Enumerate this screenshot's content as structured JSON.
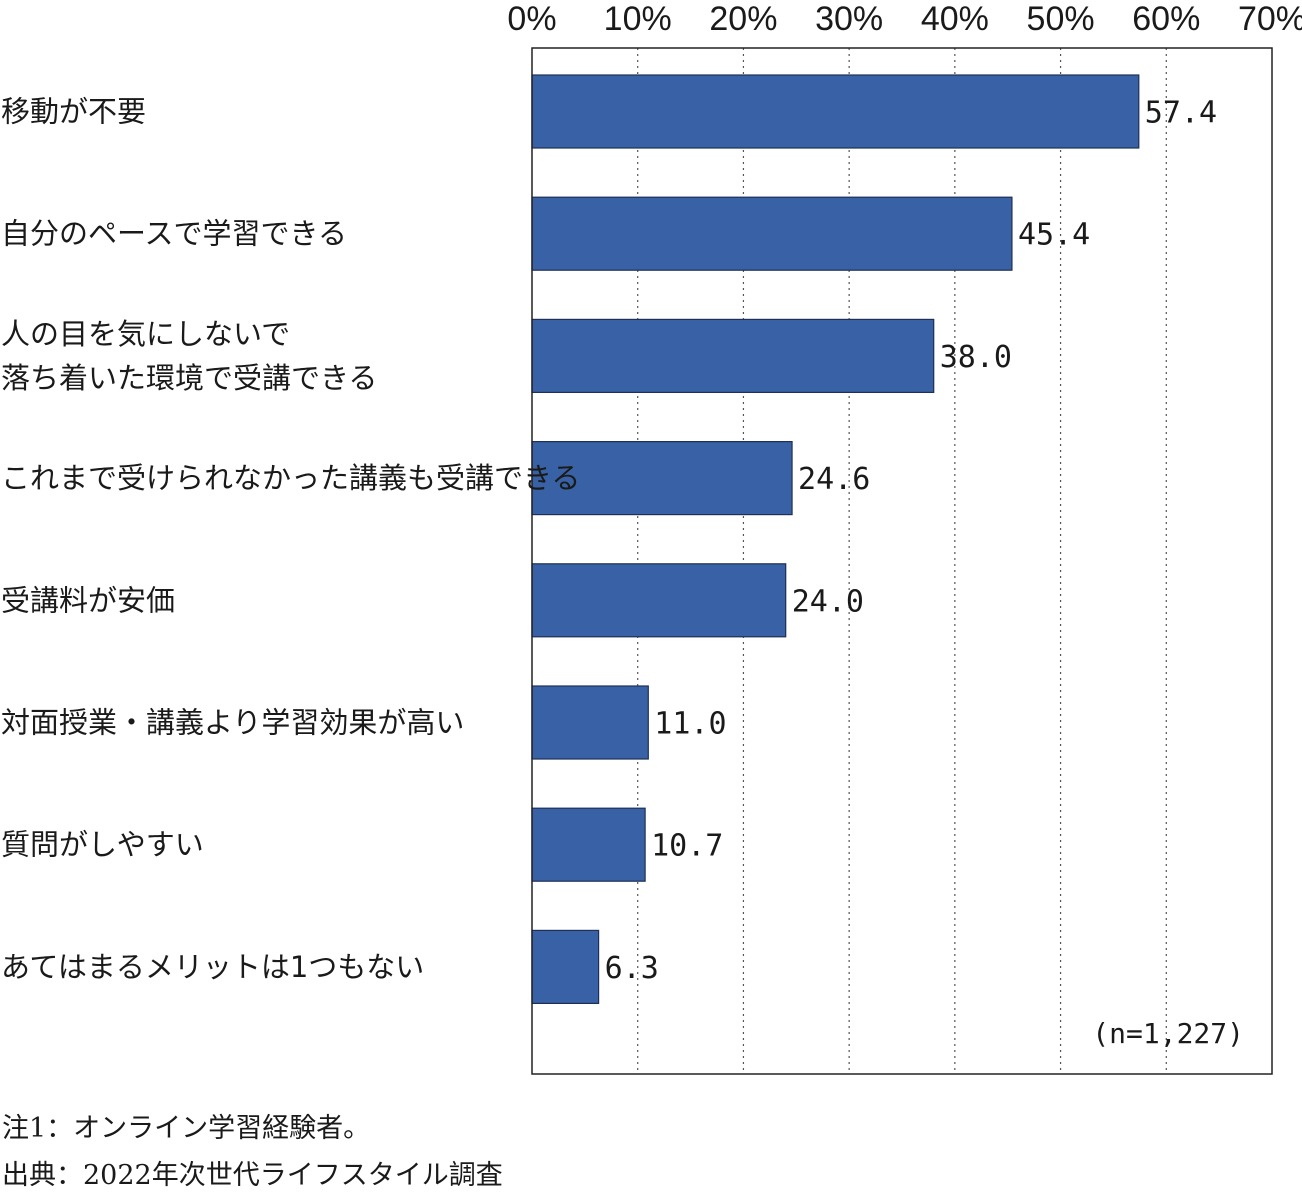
{
  "chart_data": {
    "type": "bar",
    "orientation": "horizontal",
    "categories": [
      [
        "移動が不要"
      ],
      [
        "自分のペースで学習できる"
      ],
      [
        "人の目を気にしないで",
        "落ち着いた環境で受講できる"
      ],
      [
        "これまで受けられなかった講義も受講できる"
      ],
      [
        "受講料が安価"
      ],
      [
        "対面授業・講義より学習効果が高い"
      ],
      [
        "質問がしやすい"
      ],
      [
        "あてはまるメリットは1つもない"
      ]
    ],
    "values": [
      57.4,
      45.4,
      38.0,
      24.6,
      24.0,
      11.0,
      10.7,
      6.3
    ],
    "value_labels": [
      "57.4",
      "45.4",
      "38.0",
      "24.6",
      "24.0",
      "11.0",
      "10.7",
      "6.3"
    ],
    "xlim": [
      0,
      70
    ],
    "x_ticks": [
      0,
      10,
      20,
      30,
      40,
      50,
      60,
      70
    ],
    "x_tick_labels": [
      "0%",
      "10%",
      "20%",
      "30%",
      "40%",
      "50%",
      "60%",
      "70%"
    ],
    "axis_position": "top",
    "grid": true,
    "grid_style": "dotted-vertical",
    "bar_color": "#3862a5",
    "bar_edge_color": "#1f2f55",
    "n_label": "(n=1,227)"
  },
  "notes": {
    "note1": "注1：オンライン学習経験者。",
    "source": "出典：2022年次世代ライフスタイル調査"
  }
}
